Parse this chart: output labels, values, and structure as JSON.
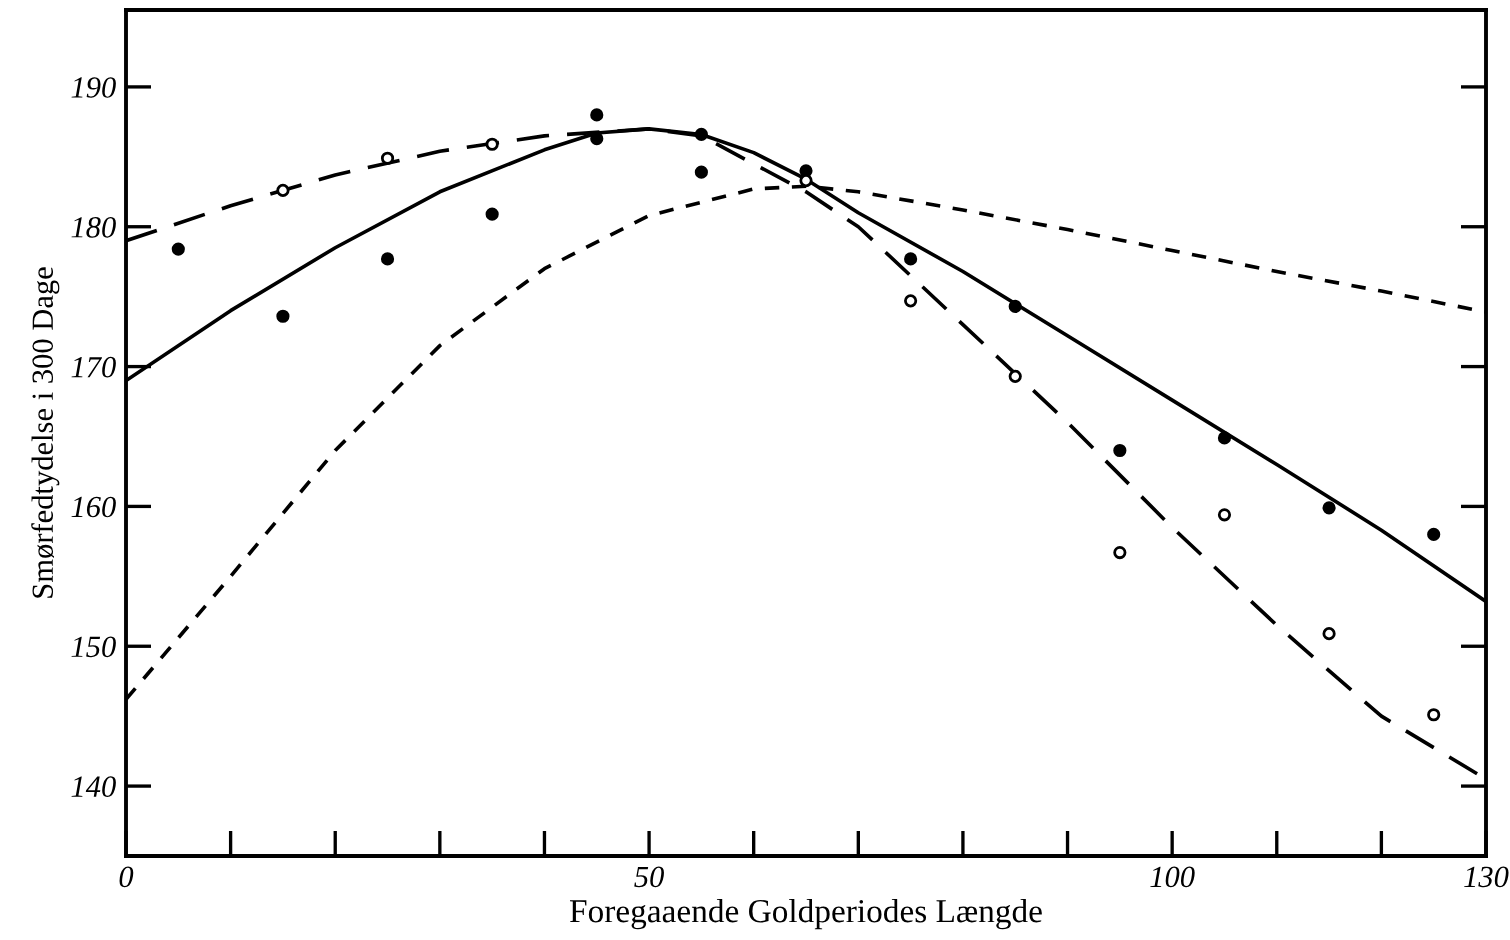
{
  "chart_data": {
    "type": "line",
    "xlabel": "Foregaaende Goldperiodes Længde",
    "ylabel": "Smørfedtydelse i 300 Dage",
    "xlim": [
      0,
      130
    ],
    "ylim": [
      135,
      195.5
    ],
    "xticks": [
      0,
      {
        "value": 10,
        "label": null
      },
      {
        "value": 20,
        "label": null
      },
      {
        "value": 30,
        "label": null
      },
      {
        "value": 40,
        "label": null
      },
      50,
      {
        "value": 60,
        "label": null
      },
      {
        "value": 70,
        "label": null
      },
      {
        "value": 80,
        "label": null
      },
      {
        "value": 90,
        "label": null
      },
      100,
      {
        "value": 110,
        "label": null
      },
      {
        "value": 120,
        "label": null
      },
      130
    ],
    "yticks": [
      140,
      150,
      160,
      170,
      180,
      190
    ],
    "grid": false,
    "legend": false,
    "series": [
      {
        "type": "scatter",
        "marker": "circle",
        "color": "#000000",
        "x": [
          5,
          15,
          25,
          35,
          45,
          45,
          55,
          55,
          65,
          75,
          85,
          95,
          105,
          115,
          125
        ],
        "values": [
          178.4,
          173.6,
          177.7,
          180.9,
          188.0,
          186.3,
          186.6,
          183.9,
          184.0,
          177.7,
          174.3,
          164.0,
          164.9,
          159.9,
          158.0
        ]
      },
      {
        "type": "scatter",
        "marker": "circle",
        "color": "#ffffff",
        "x": [
          15,
          25,
          35,
          65,
          75,
          85,
          95,
          105,
          115,
          125
        ],
        "values": [
          182.6,
          184.9,
          185.9,
          183.3,
          174.7,
          169.3,
          156.7,
          159.4,
          150.9,
          145.1
        ]
      },
      {
        "line_style": "solid",
        "marker": "none",
        "color": "#000000",
        "x": [
          0,
          10,
          20,
          30,
          40,
          45,
          50,
          55,
          60,
          65,
          70,
          80,
          90,
          100,
          110,
          120,
          130
        ],
        "values": [
          169,
          174,
          178.5,
          182.5,
          185.5,
          186.7,
          187,
          186.6,
          185.3,
          183.4,
          181,
          176.8,
          172.2,
          167.6,
          163,
          158.3,
          153.2
        ]
      },
      {
        "line_style": "dashed",
        "marker": "none",
        "color": "#000000",
        "x": [
          0,
          10,
          20,
          30,
          40,
          50,
          55,
          60,
          65,
          70,
          80,
          90,
          100,
          110,
          120,
          130
        ],
        "values": [
          179,
          181.5,
          183.7,
          185.4,
          186.5,
          187,
          186.5,
          184.5,
          182.5,
          180,
          173,
          166,
          158.5,
          151.5,
          145,
          140.5
        ]
      },
      {
        "line_style": "dotted",
        "marker": "none",
        "color": "#000000",
        "x": [
          0,
          10,
          20,
          30,
          40,
          50,
          60,
          65,
          70,
          80,
          90,
          100,
          110,
          120,
          130
        ],
        "values": [
          146.2,
          155,
          164,
          171.5,
          177,
          180.8,
          182.7,
          182.9,
          182.5,
          181.2,
          179.8,
          178.3,
          176.8,
          175.4,
          173.9
        ]
      }
    ]
  }
}
